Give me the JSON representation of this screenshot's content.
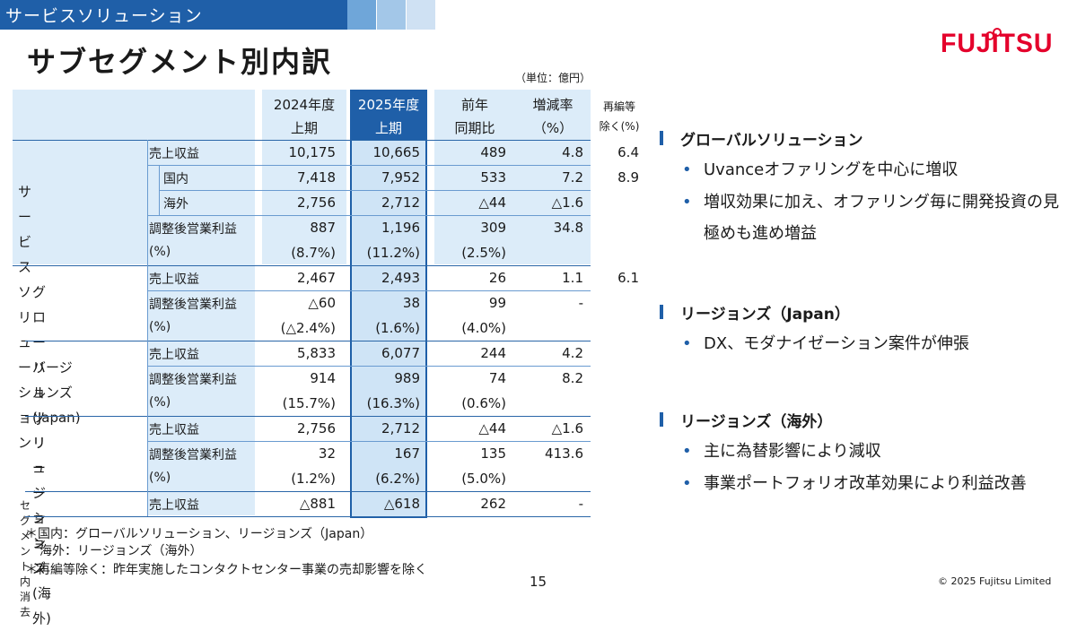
{
  "header": {
    "section_label": "サービスソリューション",
    "page_title": "サブセグメント別内訳",
    "logo_text": "FUJITSU"
  },
  "colors": {
    "accent": "#1f5fa8",
    "brand_red": "#e4002b",
    "table_fill": "#dcecf9",
    "highlight": "#cfe4f6"
  },
  "table": {
    "unit": "（単位：億円）",
    "headers": {
      "fy2024": [
        "2024年度",
        "上期"
      ],
      "fy2025": [
        "2025年度",
        "上期"
      ],
      "yoy": [
        "前年",
        "同期比"
      ],
      "rate": [
        "増減率",
        "（%）"
      ],
      "reorg": [
        "再編等",
        "除く(%)"
      ]
    },
    "groups": [
      {
        "name": [
          "サービス",
          "ソリューション"
        ]
      },
      {
        "name": [
          "グローバル",
          "ソリューション"
        ]
      },
      {
        "name": [
          "リージョンズ",
          "(Japan)"
        ]
      },
      {
        "name": [
          "リージョンズ",
          "(海外)"
        ]
      },
      {
        "name": [
          "セグメント内消去"
        ]
      }
    ],
    "rows": [
      {
        "label": "売上収益",
        "v2024": "10,175",
        "v2025": "10,665",
        "yoy": "489",
        "rate": "4.8",
        "reorg": "6.4"
      },
      {
        "label": "国内",
        "v2024": "7,418",
        "v2025": "7,952",
        "yoy": "533",
        "rate": "7.2",
        "reorg": "8.9"
      },
      {
        "label": "海外",
        "v2024": "2,756",
        "v2025": "2,712",
        "yoy": "△44",
        "rate": "△1.6",
        "reorg": ""
      },
      {
        "label": "調整後営業利益",
        "v2024": "887",
        "v2025": "1,196",
        "yoy": "309",
        "rate": "34.8",
        "reorg": ""
      },
      {
        "label": "(%)",
        "v2024": "(8.7%)",
        "v2025": "(11.2%)",
        "yoy": "(2.5%)",
        "rate": "",
        "reorg": ""
      },
      {
        "label": "売上収益",
        "v2024": "2,467",
        "v2025": "2,493",
        "yoy": "26",
        "rate": "1.1",
        "reorg": "6.1"
      },
      {
        "label": "調整後営業利益",
        "v2024": "△60",
        "v2025": "38",
        "yoy": "99",
        "rate": "-",
        "reorg": ""
      },
      {
        "label": "(%)",
        "v2024": "(△2.4%)",
        "v2025": "(1.6%)",
        "yoy": "(4.0%)",
        "rate": "",
        "reorg": ""
      },
      {
        "label": "売上収益",
        "v2024": "5,833",
        "v2025": "6,077",
        "yoy": "244",
        "rate": "4.2",
        "reorg": ""
      },
      {
        "label": "調整後営業利益",
        "v2024": "914",
        "v2025": "989",
        "yoy": "74",
        "rate": "8.2",
        "reorg": ""
      },
      {
        "label": "(%)",
        "v2024": "(15.7%)",
        "v2025": "(16.3%)",
        "yoy": "(0.6%)",
        "rate": "",
        "reorg": ""
      },
      {
        "label": "売上収益",
        "v2024": "2,756",
        "v2025": "2,712",
        "yoy": "△44",
        "rate": "△1.6",
        "reorg": ""
      },
      {
        "label": "調整後営業利益",
        "v2024": "32",
        "v2025": "167",
        "yoy": "135",
        "rate": "413.6",
        "reorg": ""
      },
      {
        "label": "(%)",
        "v2024": "(1.2%)",
        "v2025": "(6.2%)",
        "yoy": "(5.0%)",
        "rate": "",
        "reorg": ""
      },
      {
        "label": "売上収益",
        "v2024": "△881",
        "v2025": "△618",
        "yoy": "262",
        "rate": "-",
        "reorg": ""
      }
    ]
  },
  "sections": [
    {
      "title": "グローバルソリューション",
      "bullets": [
        "Uvanceオファリングを中心に増収",
        "増収効果に加え、オファリング毎に開発投資の見極めも進め増益"
      ]
    },
    {
      "title": "リージョンズ（Japan）",
      "bullets": [
        "DX、モダナイゼーション案件が伸張"
      ]
    },
    {
      "title": "リージョンズ（海外）",
      "bullets": [
        "主に為替影響により減収",
        "事業ポートフォリオ改革効果により利益改善"
      ]
    }
  ],
  "footnotes": [
    "＊国内：グローバルソリューション、リージョンズ（Japan）",
    "海外：リージョンズ（海外）",
    "＊再編等除く：昨年実施したコンタクトセンター事業の売却影響を除く"
  ],
  "page_number": "15",
  "copyright": "© 2025 Fujitsu Limited"
}
